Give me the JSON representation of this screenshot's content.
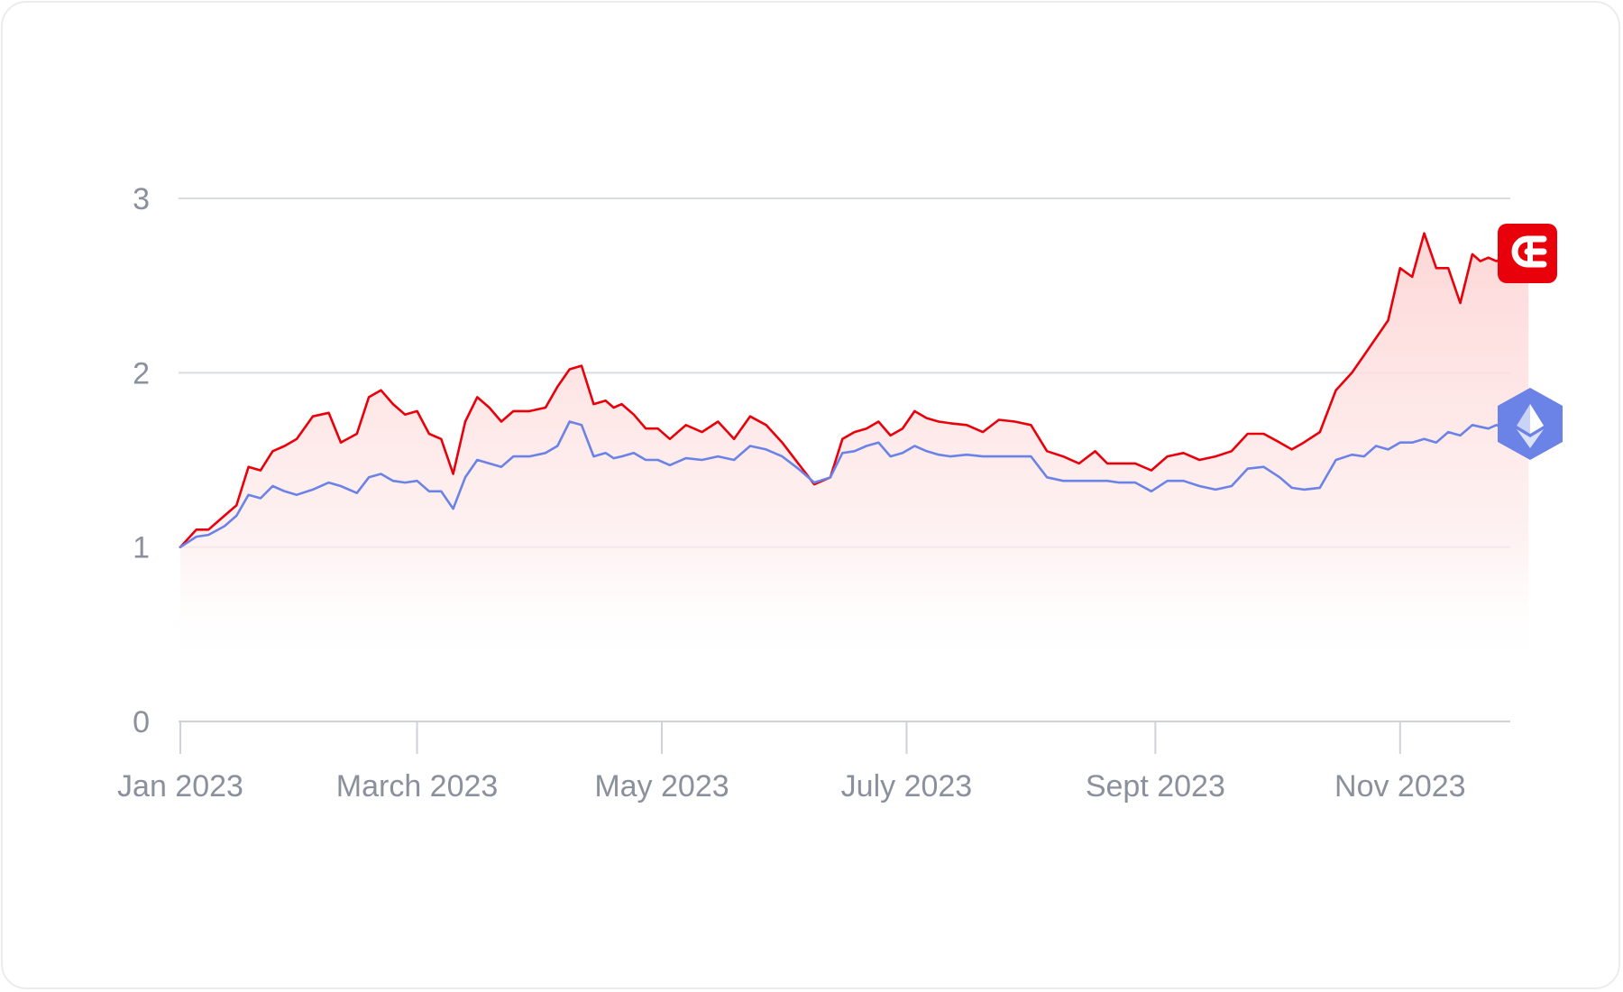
{
  "chart_data": {
    "type": "line",
    "title": "",
    "xlabel": "",
    "ylabel": "",
    "ylim": [
      0,
      3
    ],
    "y_ticks": [
      "0",
      "1",
      "2",
      "3"
    ],
    "x_tick_labels": [
      "Jan 2023",
      "March 2023",
      "May 2023",
      "July 2023",
      "Sept 2023",
      "Nov 2023"
    ],
    "x_tick_dates": [
      "2023-01-01",
      "2023-03-01",
      "2023-05-01",
      "2023-07-01",
      "2023-09-01",
      "2023-11-01"
    ],
    "grid": true,
    "series": [
      {
        "name": "",
        "icon": "brand-logo-icon",
        "color": "#e8000b",
        "fill": true,
        "x": [
          "2023-01-01",
          "2023-01-05",
          "2023-01-08",
          "2023-01-12",
          "2023-01-15",
          "2023-01-18",
          "2023-01-21",
          "2023-01-24",
          "2023-01-27",
          "2023-01-30",
          "2023-02-03",
          "2023-02-07",
          "2023-02-10",
          "2023-02-14",
          "2023-02-17",
          "2023-02-20",
          "2023-02-23",
          "2023-02-26",
          "2023-03-01",
          "2023-03-04",
          "2023-03-07",
          "2023-03-10",
          "2023-03-13",
          "2023-03-16",
          "2023-03-19",
          "2023-03-22",
          "2023-03-25",
          "2023-03-29",
          "2023-04-02",
          "2023-04-05",
          "2023-04-08",
          "2023-04-11",
          "2023-04-14",
          "2023-04-17",
          "2023-04-19",
          "2023-04-21",
          "2023-04-24",
          "2023-04-27",
          "2023-04-30",
          "2023-05-03",
          "2023-05-07",
          "2023-05-11",
          "2023-05-15",
          "2023-05-19",
          "2023-05-23",
          "2023-05-27",
          "2023-05-31",
          "2023-06-04",
          "2023-06-08",
          "2023-06-12",
          "2023-06-15",
          "2023-06-18",
          "2023-06-21",
          "2023-06-24",
          "2023-06-27",
          "2023-06-30",
          "2023-07-03",
          "2023-07-06",
          "2023-07-09",
          "2023-07-12",
          "2023-07-16",
          "2023-07-20",
          "2023-07-24",
          "2023-07-28",
          "2023-08-01",
          "2023-08-05",
          "2023-08-09",
          "2023-08-13",
          "2023-08-17",
          "2023-08-20",
          "2023-08-23",
          "2023-08-27",
          "2023-08-31",
          "2023-09-04",
          "2023-09-08",
          "2023-09-12",
          "2023-09-16",
          "2023-09-20",
          "2023-09-24",
          "2023-09-28",
          "2023-10-02",
          "2023-10-05",
          "2023-10-08",
          "2023-10-12",
          "2023-10-16",
          "2023-10-20",
          "2023-10-23",
          "2023-10-26",
          "2023-10-29",
          "2023-11-01",
          "2023-11-04",
          "2023-11-07",
          "2023-11-10",
          "2023-11-13",
          "2023-11-16",
          "2023-11-19",
          "2023-11-21",
          "2023-11-23",
          "2023-11-25",
          "2023-11-27",
          "2023-11-29",
          "2023-12-01",
          "2023-12-03"
        ],
        "values": [
          1.0,
          1.1,
          1.1,
          1.18,
          1.24,
          1.46,
          1.44,
          1.55,
          1.58,
          1.62,
          1.75,
          1.77,
          1.6,
          1.65,
          1.86,
          1.9,
          1.82,
          1.76,
          1.78,
          1.65,
          1.62,
          1.42,
          1.72,
          1.86,
          1.8,
          1.72,
          1.78,
          1.78,
          1.8,
          1.92,
          2.02,
          2.04,
          1.82,
          1.84,
          1.8,
          1.82,
          1.76,
          1.68,
          1.68,
          1.62,
          1.7,
          1.66,
          1.72,
          1.62,
          1.75,
          1.7,
          1.6,
          1.48,
          1.36,
          1.4,
          1.62,
          1.66,
          1.68,
          1.72,
          1.64,
          1.68,
          1.78,
          1.74,
          1.72,
          1.71,
          1.7,
          1.66,
          1.73,
          1.72,
          1.7,
          1.55,
          1.52,
          1.48,
          1.55,
          1.48,
          1.48,
          1.48,
          1.44,
          1.52,
          1.54,
          1.5,
          1.52,
          1.55,
          1.65,
          1.65,
          1.6,
          1.56,
          1.6,
          1.66,
          1.9,
          2.0,
          2.1,
          2.2,
          2.3,
          2.6,
          2.55,
          2.8,
          2.6,
          2.6,
          2.4,
          2.68,
          2.64,
          2.66,
          2.64,
          2.66,
          2.64,
          2.62,
          2.64
        ]
      },
      {
        "name": "",
        "icon": "ethereum-icon",
        "color": "#6b82e6",
        "fill": false,
        "x": [
          "2023-01-01",
          "2023-01-05",
          "2023-01-08",
          "2023-01-12",
          "2023-01-15",
          "2023-01-18",
          "2023-01-21",
          "2023-01-24",
          "2023-01-27",
          "2023-01-30",
          "2023-02-03",
          "2023-02-07",
          "2023-02-10",
          "2023-02-14",
          "2023-02-17",
          "2023-02-20",
          "2023-02-23",
          "2023-02-26",
          "2023-03-01",
          "2023-03-04",
          "2023-03-07",
          "2023-03-10",
          "2023-03-13",
          "2023-03-16",
          "2023-03-19",
          "2023-03-22",
          "2023-03-25",
          "2023-03-29",
          "2023-04-02",
          "2023-04-05",
          "2023-04-08",
          "2023-04-11",
          "2023-04-14",
          "2023-04-17",
          "2023-04-19",
          "2023-04-21",
          "2023-04-24",
          "2023-04-27",
          "2023-04-30",
          "2023-05-03",
          "2023-05-07",
          "2023-05-11",
          "2023-05-15",
          "2023-05-19",
          "2023-05-23",
          "2023-05-27",
          "2023-05-31",
          "2023-06-04",
          "2023-06-08",
          "2023-06-12",
          "2023-06-15",
          "2023-06-18",
          "2023-06-21",
          "2023-06-24",
          "2023-06-27",
          "2023-06-30",
          "2023-07-03",
          "2023-07-06",
          "2023-07-09",
          "2023-07-12",
          "2023-07-16",
          "2023-07-20",
          "2023-07-24",
          "2023-07-28",
          "2023-08-01",
          "2023-08-05",
          "2023-08-09",
          "2023-08-13",
          "2023-08-17",
          "2023-08-20",
          "2023-08-23",
          "2023-08-27",
          "2023-08-31",
          "2023-09-04",
          "2023-09-08",
          "2023-09-12",
          "2023-09-16",
          "2023-09-20",
          "2023-09-24",
          "2023-09-28",
          "2023-10-02",
          "2023-10-05",
          "2023-10-08",
          "2023-10-12",
          "2023-10-16",
          "2023-10-20",
          "2023-10-23",
          "2023-10-26",
          "2023-10-29",
          "2023-11-01",
          "2023-11-04",
          "2023-11-07",
          "2023-11-10",
          "2023-11-13",
          "2023-11-16",
          "2023-11-19",
          "2023-11-21",
          "2023-11-23",
          "2023-11-25",
          "2023-11-27",
          "2023-11-29",
          "2023-12-01",
          "2023-12-03"
        ],
        "values": [
          1.0,
          1.06,
          1.07,
          1.12,
          1.18,
          1.3,
          1.28,
          1.35,
          1.32,
          1.3,
          1.33,
          1.37,
          1.35,
          1.31,
          1.4,
          1.42,
          1.38,
          1.37,
          1.38,
          1.32,
          1.32,
          1.22,
          1.4,
          1.5,
          1.48,
          1.46,
          1.52,
          1.52,
          1.54,
          1.58,
          1.72,
          1.7,
          1.52,
          1.54,
          1.51,
          1.52,
          1.54,
          1.5,
          1.5,
          1.47,
          1.51,
          1.5,
          1.52,
          1.5,
          1.58,
          1.56,
          1.52,
          1.45,
          1.37,
          1.4,
          1.54,
          1.55,
          1.58,
          1.6,
          1.52,
          1.54,
          1.58,
          1.55,
          1.53,
          1.52,
          1.53,
          1.52,
          1.52,
          1.52,
          1.52,
          1.4,
          1.38,
          1.38,
          1.38,
          1.38,
          1.37,
          1.37,
          1.32,
          1.38,
          1.38,
          1.35,
          1.33,
          1.35,
          1.45,
          1.46,
          1.4,
          1.34,
          1.33,
          1.34,
          1.5,
          1.53,
          1.52,
          1.58,
          1.56,
          1.6,
          1.6,
          1.62,
          1.6,
          1.66,
          1.64,
          1.7,
          1.69,
          1.68,
          1.7,
          1.68,
          1.7,
          1.69,
          1.68
        ]
      }
    ]
  }
}
